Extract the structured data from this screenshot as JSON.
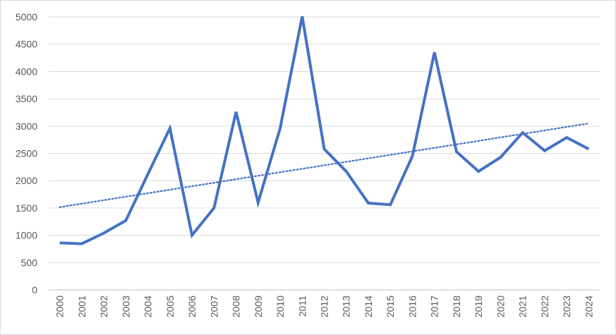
{
  "chart_data": {
    "type": "line",
    "title": "",
    "xlabel": "",
    "ylabel": "",
    "categories": [
      "2000",
      "2001",
      "2002",
      "2003",
      "2004",
      "2005",
      "2006",
      "2007",
      "2008",
      "2009",
      "2010",
      "2011",
      "2012",
      "2013",
      "2014",
      "2015",
      "2016",
      "2017",
      "2018",
      "2019",
      "2020",
      "2021",
      "2022",
      "2023",
      "2024"
    ],
    "series": [
      {
        "values": [
          860,
          845,
          1040,
          1270,
          2120,
          2960,
          1000,
          1500,
          3260,
          1600,
          2960,
          5010,
          2580,
          2170,
          1590,
          1560,
          2450,
          4350,
          2530,
          2170,
          2430,
          2880,
          2550,
          2790,
          2580
        ],
        "color": "#4472c4",
        "style": "solid"
      }
    ],
    "trendline": {
      "type": "linear",
      "color": "#4472c4",
      "style": "dotted"
    },
    "ylim": [
      0,
      5000
    ],
    "yticks": [
      "0",
      "500",
      "1000",
      "1500",
      "2000",
      "2500",
      "3000",
      "3500",
      "4000",
      "4500",
      "5000"
    ],
    "grid": true,
    "legend": "none"
  }
}
